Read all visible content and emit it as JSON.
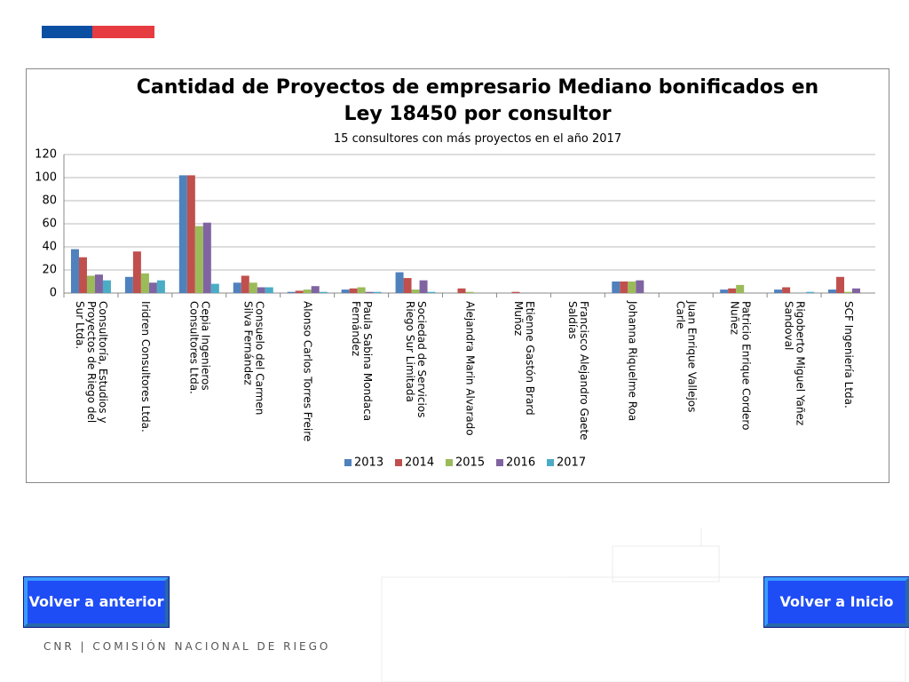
{
  "chart_data": {
    "type": "bar",
    "title": "Cantidad de Proyectos de empresario Mediano bonificados en Ley 18450 por consultor",
    "subtitle": "15 consultores con más proyectos en el año 2017",
    "categories": [
      "Consultoría, Estudios y Proyectos de Riego del Sur Ltda.",
      "Iridren Consultores Ltda.",
      "Cepia Ingenieros Consultores Ltda.",
      "Consuelo del Carmen Silva Fernández",
      "Alonso Carlos Torres Freire",
      "Paula Sabina Mondaca Fernández",
      "Sociedad de Servicios Riego Sur Limitada",
      "Alejandra Marin Alvarado",
      "Etienne Gastón Brard Muñoz",
      "Francisco Alejandro Gaete Saldías",
      "Johanna Riquelme Roa",
      "Juan Enrique Vallejos Carle",
      "Patricio Enrique Cordero Nuñez",
      "Rigoberto Miguel Yañez Sandoval",
      "SCF Ingeniería Ltda."
    ],
    "series": [
      {
        "name": "2013",
        "color": "#4f81bd",
        "values": [
          38,
          14,
          102,
          9,
          1,
          3,
          18,
          0,
          0,
          0,
          10,
          0,
          3,
          3,
          3
        ]
      },
      {
        "name": "2014",
        "color": "#c0504d",
        "values": [
          31,
          36,
          102,
          15,
          2,
          4,
          13,
          4,
          1,
          0,
          10,
          0,
          4,
          5,
          14
        ]
      },
      {
        "name": "2015",
        "color": "#9bbb59",
        "values": [
          15,
          17,
          58,
          9,
          3,
          5,
          3,
          1,
          0,
          0,
          10,
          0,
          7,
          0,
          1
        ]
      },
      {
        "name": "2016",
        "color": "#8064a2",
        "values": [
          16,
          9,
          61,
          5,
          6,
          1,
          11,
          0,
          0,
          0,
          11,
          0,
          0,
          0,
          4
        ]
      },
      {
        "name": "2017",
        "color": "#4bacc6",
        "values": [
          11,
          11,
          8,
          5,
          1,
          1,
          1,
          0,
          0,
          0,
          0,
          0,
          0,
          1,
          0
        ]
      }
    ],
    "ylim": [
      0,
      120
    ],
    "yticks": [
      0,
      20,
      40,
      60,
      80,
      100,
      120
    ],
    "grid": true,
    "legend": "bottom"
  },
  "buttons": {
    "back": "Volver a anterior",
    "home": "Volver a Inicio"
  },
  "footer": "CNR | COMISIÓN NACIONAL DE RIEGO"
}
